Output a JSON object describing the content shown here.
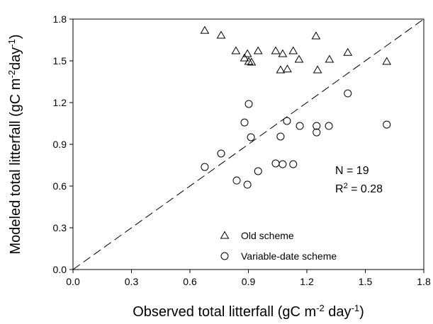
{
  "chart_data": {
    "type": "scatter",
    "x_label": [
      "Observed total litterfall (gC m",
      "-2",
      " day",
      "-1",
      ")"
    ],
    "y_label": [
      "Modeled total litterfall (gC m",
      "-2",
      "day",
      "-1",
      ")"
    ],
    "annotations": [
      [
        "N = 19"
      ],
      [
        "R",
        "2",
        " = 0.28"
      ]
    ],
    "xlim": [
      0,
      1.8
    ],
    "ylim": [
      0,
      1.8
    ],
    "xticks": [
      {
        "value": 0,
        "label": "0.0"
      },
      {
        "value": 0.3,
        "label": "0.3"
      },
      {
        "value": 0.6,
        "label": "0.6"
      },
      {
        "value": 0.9,
        "label": "0.9"
      },
      {
        "value": 1.2,
        "label": "1.2"
      },
      {
        "value": 1.5,
        "label": "1.5"
      },
      {
        "value": 1.8,
        "label": "1.8"
      }
    ],
    "yticks": [
      {
        "value": 0,
        "label": "0.0"
      },
      {
        "value": 0.3,
        "label": "0.3"
      },
      {
        "value": 0.6,
        "label": "0.6"
      },
      {
        "value": 0.9,
        "label": "0.9"
      },
      {
        "value": 1.2,
        "label": "1.2"
      },
      {
        "value": 1.5,
        "label": "1.5"
      },
      {
        "value": 1.8,
        "label": "1.8"
      }
    ],
    "legend": "lower right",
    "series": [
      {
        "name": "Old scheme",
        "color": "#000000",
        "marker": "triangle",
        "x": [
          0.676,
          0.76,
          0.836,
          0.895,
          0.88,
          0.902,
          0.916,
          0.95,
          1.04,
          1.076,
          1.065,
          1.1,
          1.13,
          1.16,
          1.247,
          1.255,
          1.316,
          1.41,
          1.61
        ],
        "values": [
          1.718,
          1.683,
          1.571,
          1.55,
          1.52,
          1.495,
          1.49,
          1.571,
          1.571,
          1.55,
          1.434,
          1.44,
          1.571,
          1.51,
          1.678,
          1.434,
          1.51,
          1.56,
          1.495
        ]
      },
      {
        "name": "Variable-date scheme",
        "color": "#000000",
        "marker": "circle",
        "x": [
          0.676,
          0.76,
          0.84,
          0.88,
          0.895,
          0.902,
          0.913,
          0.95,
          1.04,
          1.065,
          1.076,
          1.098,
          1.13,
          1.164,
          1.25,
          1.25,
          1.313,
          1.41,
          1.61
        ],
        "values": [
          0.737,
          0.834,
          0.64,
          1.057,
          0.61,
          1.19,
          0.951,
          0.707,
          0.763,
          0.956,
          0.757,
          1.068,
          0.757,
          1.032,
          1.032,
          0.986,
          1.032,
          1.266,
          1.042
        ]
      }
    ]
  }
}
